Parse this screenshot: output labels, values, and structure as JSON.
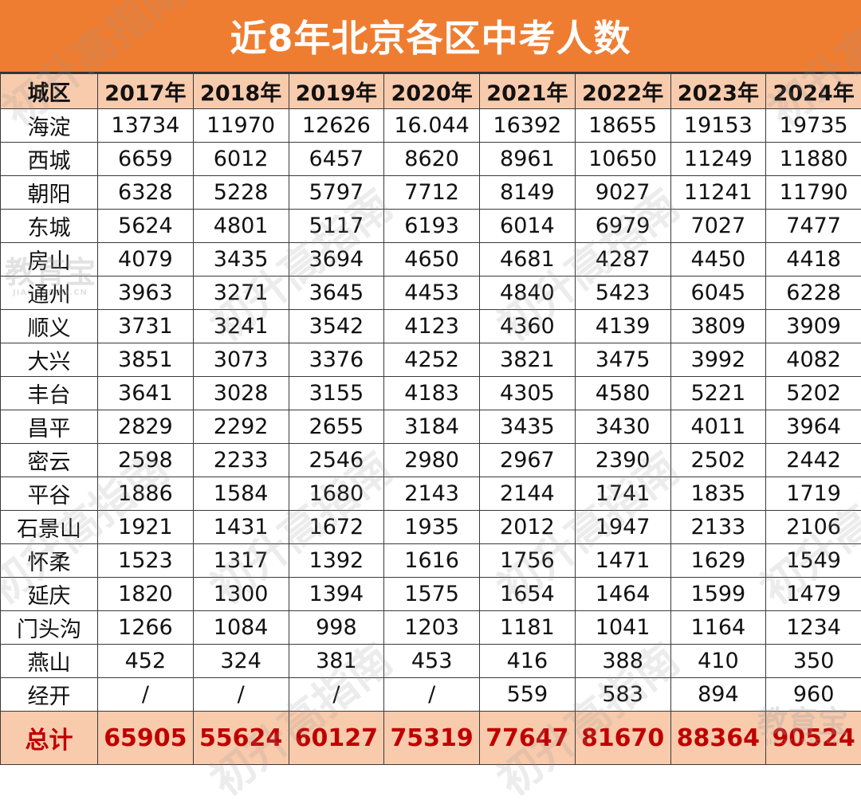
{
  "title": "近8年北京各区中考人数",
  "header": {
    "district_label": "城区",
    "years": [
      "2017年",
      "2018年",
      "2019年",
      "2020年",
      "2021年",
      "2022年",
      "2023年",
      "2024年"
    ]
  },
  "rows": [
    {
      "district": "海淀",
      "values": [
        "13734",
        "11970",
        "12626",
        "16.044",
        "16392",
        "18655",
        "19153",
        "19735"
      ]
    },
    {
      "district": "西城",
      "values": [
        "6659",
        "6012",
        "6457",
        "8620",
        "8961",
        "10650",
        "11249",
        "11880"
      ]
    },
    {
      "district": "朝阳",
      "values": [
        "6328",
        "5228",
        "5797",
        "7712",
        "8149",
        "9027",
        "11241",
        "11790"
      ]
    },
    {
      "district": "东城",
      "values": [
        "5624",
        "4801",
        "5117",
        "6193",
        "6014",
        "6979",
        "7027",
        "7477"
      ]
    },
    {
      "district": "房山",
      "values": [
        "4079",
        "3435",
        "3694",
        "4650",
        "4681",
        "4287",
        "4450",
        "4418"
      ]
    },
    {
      "district": "通州",
      "values": [
        "3963",
        "3271",
        "3645",
        "4453",
        "4840",
        "5423",
        "6045",
        "6228"
      ]
    },
    {
      "district": "顺义",
      "values": [
        "3731",
        "3241",
        "3542",
        "4123",
        "4360",
        "4139",
        "3809",
        "3909"
      ]
    },
    {
      "district": "大兴",
      "values": [
        "3851",
        "3073",
        "3376",
        "4252",
        "3821",
        "3475",
        "3992",
        "4082"
      ]
    },
    {
      "district": "丰台",
      "values": [
        "3641",
        "3028",
        "3155",
        "4183",
        "4305",
        "4580",
        "5221",
        "5202"
      ]
    },
    {
      "district": "昌平",
      "values": [
        "2829",
        "2292",
        "2655",
        "3184",
        "3435",
        "3430",
        "4011",
        "3964"
      ]
    },
    {
      "district": "密云",
      "values": [
        "2598",
        "2233",
        "2546",
        "2980",
        "2967",
        "2390",
        "2502",
        "2442"
      ]
    },
    {
      "district": "平谷",
      "values": [
        "1886",
        "1584",
        "1680",
        "2143",
        "2144",
        "1741",
        "1835",
        "1719"
      ]
    },
    {
      "district": "石景山",
      "values": [
        "1921",
        "1431",
        "1672",
        "1935",
        "2012",
        "1947",
        "2133",
        "2106"
      ]
    },
    {
      "district": "怀柔",
      "values": [
        "1523",
        "1317",
        "1392",
        "1616",
        "1756",
        "1471",
        "1629",
        "1549"
      ]
    },
    {
      "district": "延庆",
      "values": [
        "1820",
        "1300",
        "1394",
        "1575",
        "1654",
        "1464",
        "1599",
        "1479"
      ]
    },
    {
      "district": "门头沟",
      "values": [
        "1266",
        "1084",
        "998",
        "1203",
        "1181",
        "1041",
        "1164",
        "1234"
      ]
    },
    {
      "district": "燕山",
      "values": [
        "452",
        "324",
        "381",
        "453",
        "416",
        "388",
        "410",
        "350"
      ]
    },
    {
      "district": "经开",
      "values": [
        "/",
        "/",
        "/",
        "/",
        "559",
        "583",
        "894",
        "960"
      ]
    }
  ],
  "total": {
    "label": "总计",
    "values": [
      "65905",
      "55624",
      "60127",
      "75319",
      "77647",
      "81670",
      "88364",
      "90524"
    ]
  },
  "watermark": {
    "text": "初升高指南",
    "logo_text": "教育宝",
    "logo_sub": "JIAOYUBAO.CN"
  }
}
